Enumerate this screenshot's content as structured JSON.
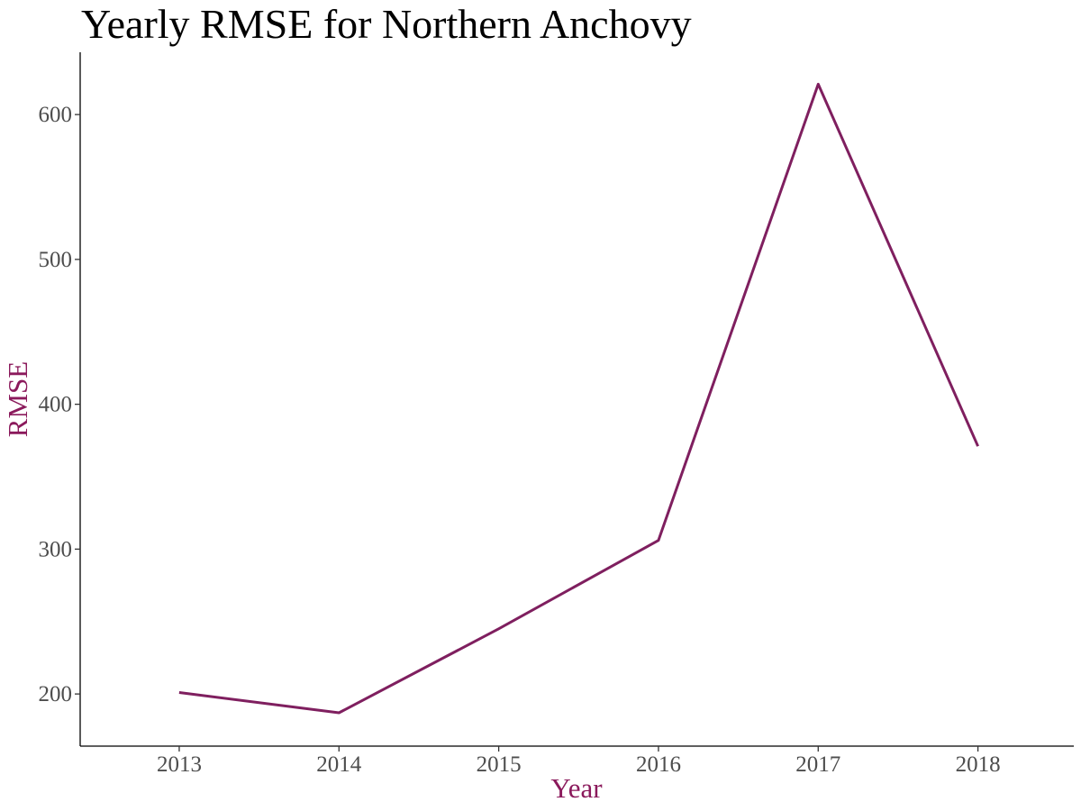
{
  "chart_data": {
    "type": "line",
    "title": "Yearly RMSE for Northern Anchovy",
    "xlabel": "Year",
    "ylabel": "RMSE",
    "x": [
      2013,
      2014,
      2015,
      2016,
      2017,
      2018
    ],
    "series": [
      {
        "values": [
          201,
          187,
          245,
          306,
          621,
          371
        ]
      }
    ],
    "x_ticks": [
      "2013",
      "2014",
      "2015",
      "2016",
      "2017",
      "2018"
    ],
    "y_ticks": [
      200,
      300,
      400,
      500,
      600
    ],
    "xlim": [
      2012.38,
      2018.6
    ],
    "ylim": [
      164,
      643
    ],
    "grid": false,
    "legend": "none",
    "colors": {
      "line": "#7f1f5f",
      "axis_title": "#8b1a5c",
      "tick_label": "#4d4d4d",
      "axis": "#000000"
    }
  }
}
